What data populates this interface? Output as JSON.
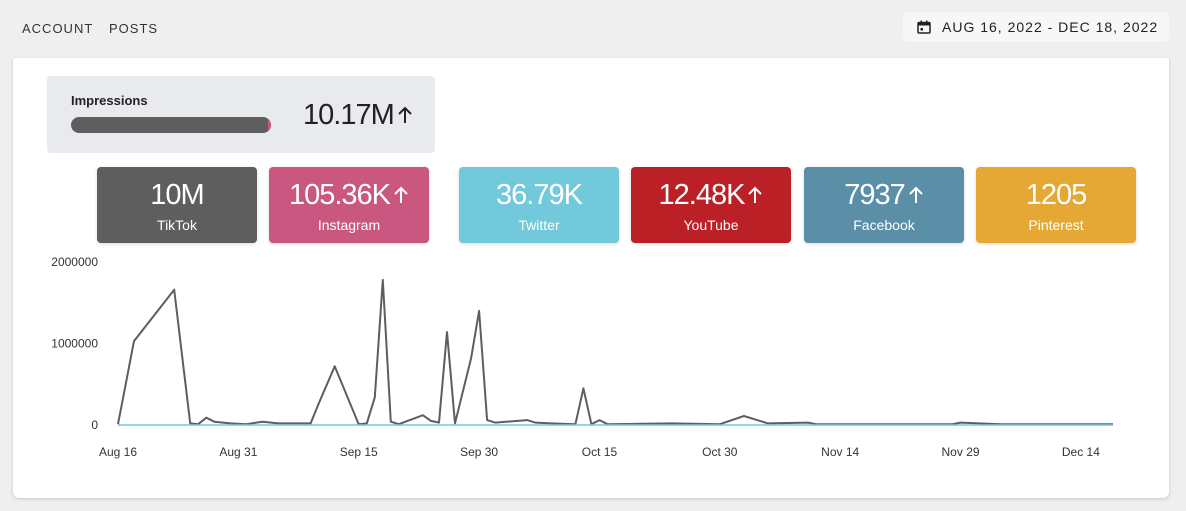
{
  "nav": {
    "account": "ACCOUNT",
    "posts": "POSTS"
  },
  "date_range": {
    "icon": "calendar-icon",
    "label": "AUG 16, 2022 - DEC 18, 2022"
  },
  "impressions": {
    "label": "Impressions",
    "value": "10.17M",
    "trend": "up",
    "bar_fraction": 1.0,
    "bar_color": "#5e5e5e",
    "bar_accent_color": "#c9577f"
  },
  "platforms": [
    {
      "name": "TikTok",
      "value": "10M",
      "trend": "",
      "color": "#5e5e5e"
    },
    {
      "name": "Instagram",
      "value": "105.36K",
      "trend": "up",
      "color": "#c9577f"
    },
    {
      "name": "Twitter",
      "value": "36.79K",
      "trend": "",
      "color": "#72c9db"
    },
    {
      "name": "YouTube",
      "value": "12.48K",
      "trend": "up",
      "color": "#bb2026"
    },
    {
      "name": "Facebook",
      "value": "7937",
      "trend": "up",
      "color": "#5b8fa8"
    },
    {
      "name": "Pinterest",
      "value": "1205",
      "trend": "",
      "color": "#e6a834"
    }
  ],
  "chart_data": {
    "type": "line",
    "ylim": [
      0,
      2000000
    ],
    "yticks": [
      "0",
      "1000000",
      "2000000"
    ],
    "xticks": [
      "Aug 16",
      "Aug 31",
      "Sep 15",
      "Sep 30",
      "Oct 15",
      "Oct 30",
      "Nov 14",
      "Nov 29",
      "Dec 14"
    ],
    "grid": false,
    "series": [
      {
        "color": "#5e5e5e",
        "points": [
          [
            "2022-08-16",
            10000
          ],
          [
            "2022-08-18",
            1030000
          ],
          [
            "2022-08-23",
            1660000
          ],
          [
            "2022-08-25",
            20000
          ],
          [
            "2022-08-26",
            10000
          ],
          [
            "2022-08-27",
            90000
          ],
          [
            "2022-08-28",
            40000
          ],
          [
            "2022-08-30",
            20000
          ],
          [
            "2022-09-01",
            10000
          ],
          [
            "2022-09-03",
            40000
          ],
          [
            "2022-09-05",
            20000
          ],
          [
            "2022-09-07",
            20000
          ],
          [
            "2022-09-09",
            20000
          ],
          [
            "2022-09-10",
            260000
          ],
          [
            "2022-09-12",
            720000
          ],
          [
            "2022-09-15",
            10000
          ],
          [
            "2022-09-16",
            20000
          ],
          [
            "2022-09-17",
            340000
          ],
          [
            "2022-09-18",
            1780000
          ],
          [
            "2022-09-19",
            40000
          ],
          [
            "2022-09-20",
            10000
          ],
          [
            "2022-09-23",
            120000
          ],
          [
            "2022-09-24",
            50000
          ],
          [
            "2022-09-25",
            30000
          ],
          [
            "2022-09-26",
            1140000
          ],
          [
            "2022-09-27",
            20000
          ],
          [
            "2022-09-29",
            820000
          ],
          [
            "2022-09-30",
            1400000
          ],
          [
            "2022-10-01",
            60000
          ],
          [
            "2022-10-02",
            30000
          ],
          [
            "2022-10-06",
            60000
          ],
          [
            "2022-10-07",
            30000
          ],
          [
            "2022-10-09",
            20000
          ],
          [
            "2022-10-12",
            10000
          ],
          [
            "2022-10-13",
            450000
          ],
          [
            "2022-10-14",
            10000
          ],
          [
            "2022-10-15",
            60000
          ],
          [
            "2022-10-16",
            10000
          ],
          [
            "2022-10-24",
            20000
          ],
          [
            "2022-10-30",
            10000
          ],
          [
            "2022-11-02",
            110000
          ],
          [
            "2022-11-05",
            20000
          ],
          [
            "2022-11-10",
            30000
          ],
          [
            "2022-11-11",
            10000
          ],
          [
            "2022-11-28",
            10000
          ],
          [
            "2022-11-29",
            30000
          ],
          [
            "2022-12-04",
            10000
          ],
          [
            "2022-12-18",
            10000
          ]
        ]
      },
      {
        "color": "#72c9db",
        "points": [
          [
            "2022-08-16",
            0
          ],
          [
            "2022-12-18",
            0
          ]
        ]
      }
    ]
  }
}
